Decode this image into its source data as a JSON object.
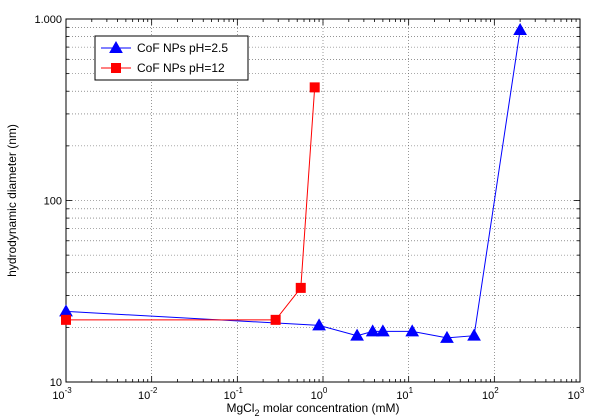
{
  "chart_data": {
    "type": "line",
    "xscale": "log",
    "yscale": "log",
    "xlim": [
      0.001,
      1000
    ],
    "ylim": [
      10,
      1000
    ],
    "xlabel_parts": [
      "MgCl",
      "2",
      " molar concentration (mM)"
    ],
    "ylabel": "hydrodynamic diameter (nm)",
    "x_ticks": [
      {
        "base": "10",
        "exp": "-3",
        "value": 0.001
      },
      {
        "base": "10",
        "exp": "-2",
        "value": 0.01
      },
      {
        "base": "10",
        "exp": "-1",
        "value": 0.1
      },
      {
        "base": "10",
        "exp": "0",
        "value": 1
      },
      {
        "base": "10",
        "exp": "1",
        "value": 10
      },
      {
        "base": "10",
        "exp": "2",
        "value": 100
      },
      {
        "base": "10",
        "exp": "3",
        "value": 1000
      }
    ],
    "y_ticks": [
      {
        "label": "10",
        "value": 10
      },
      {
        "label": "100",
        "value": 100
      },
      {
        "label": "1.000",
        "value": 1000
      }
    ],
    "grid": true,
    "legend_position": "top-left",
    "series": [
      {
        "name": "CoF NPs pH=2.5",
        "color": "#0000ff",
        "marker": "triangle",
        "x": [
          0.001,
          0.9,
          2.5,
          3.8,
          5.0,
          11.0,
          28.0,
          58.0,
          200.0
        ],
        "y": [
          24.5,
          20.5,
          18.0,
          19.0,
          19.0,
          19.0,
          17.5,
          18.0,
          870.0
        ]
      },
      {
        "name": "CoF NPs pH=12",
        "color": "#ff0000",
        "marker": "square",
        "x": [
          0.001,
          0.28,
          0.55,
          0.8
        ],
        "y": [
          22.0,
          22.0,
          33.0,
          420.0
        ]
      }
    ]
  }
}
